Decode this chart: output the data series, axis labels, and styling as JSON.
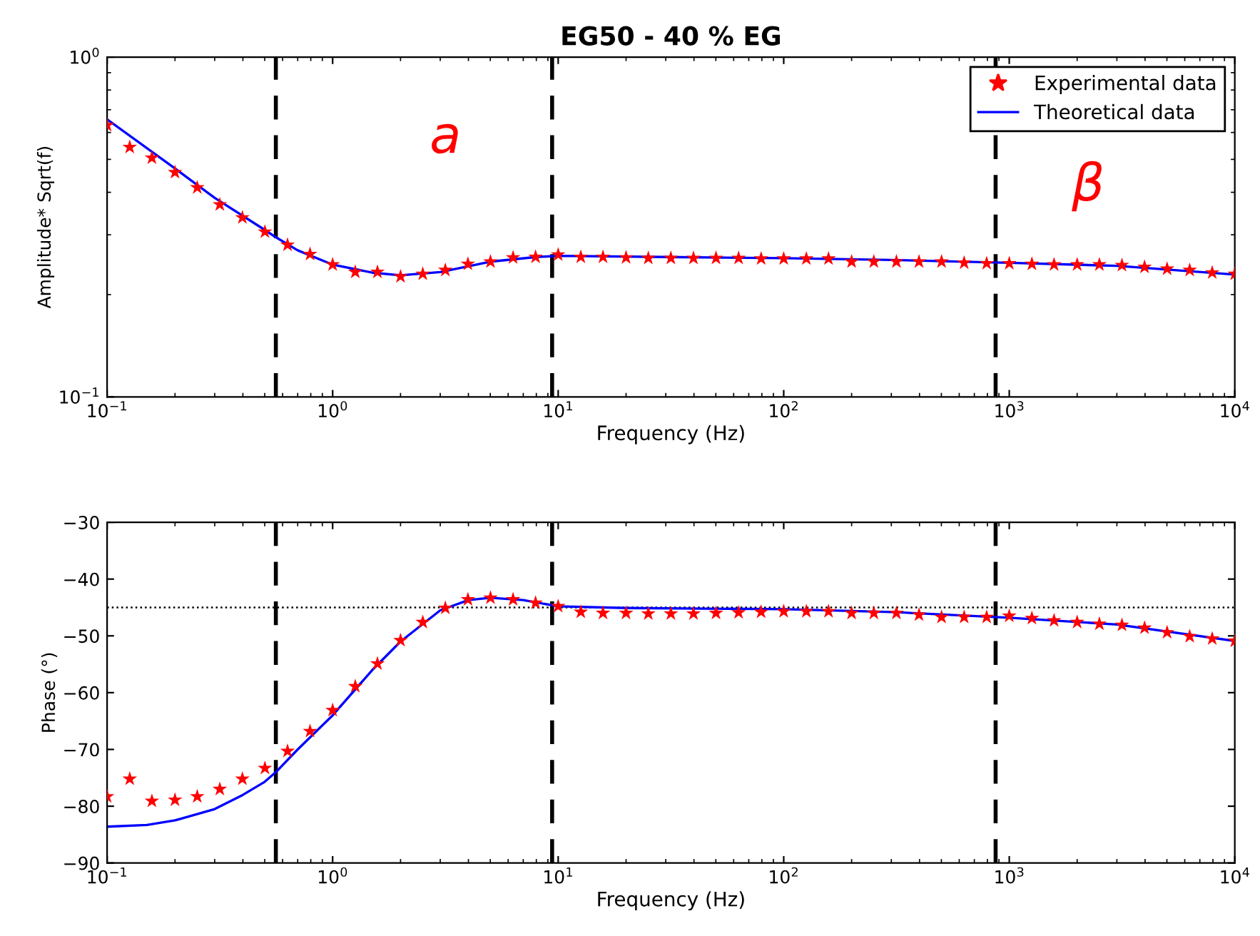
{
  "chart_data": [
    {
      "type": "scatter",
      "title": "EG50 - 40 % EG",
      "xlabel": "Frequency (Hz)",
      "ylabel": "Amplitude* Sqrt(f)",
      "log": "xy",
      "legend": "top right",
      "grid": false,
      "xlim": [
        0.1,
        10000
      ],
      "xticks": [
        {
          "value": 0.1,
          "label": "10$^{−1}$"
        },
        {
          "value": 1,
          "label": "10$^{0}$"
        },
        {
          "value": 10,
          "label": "10$^{1}$"
        },
        {
          "value": 100,
          "label": "10$^{2}$"
        },
        {
          "value": 1000,
          "label": "10$^{3}$"
        },
        {
          "value": 10000,
          "label": "10$^{4}$"
        }
      ],
      "ylim": [
        0.1,
        1
      ],
      "yticks": [
        {
          "value": 0.1,
          "label": "10$^{−1}$"
        },
        {
          "value": 1,
          "label": "10$^{0}$"
        }
      ],
      "x": [
        0.1,
        0.126,
        0.158,
        0.2,
        0.251,
        0.316,
        0.398,
        0.501,
        0.631,
        0.794,
        1,
        1.26,
        1.58,
        2,
        2.51,
        3.16,
        3.98,
        5.01,
        6.31,
        7.94,
        10,
        12.6,
        15.8,
        20,
        25.1,
        31.6,
        39.8,
        50.1,
        63.1,
        79.4,
        100,
        126,
        158,
        200,
        251,
        316,
        398,
        501,
        631,
        794,
        1000,
        1260,
        1580,
        2000,
        2510,
        3160,
        3980,
        5010,
        6310,
        7940,
        10000
      ],
      "series": [
        {
          "name": "Experimental data",
          "marker": "star",
          "color": "#ff0000",
          "values": [
            0.63,
            0.543,
            0.505,
            0.458,
            0.413,
            0.368,
            0.337,
            0.306,
            0.28,
            0.263,
            0.245,
            0.233,
            0.233,
            0.226,
            0.23,
            0.236,
            0.246,
            0.25,
            0.257,
            0.258,
            0.262,
            0.258,
            0.258,
            0.257,
            0.256,
            0.256,
            0.256,
            0.256,
            0.256,
            0.255,
            0.255,
            0.255,
            0.255,
            0.25,
            0.25,
            0.25,
            0.25,
            0.25,
            0.248,
            0.247,
            0.247,
            0.246,
            0.245,
            0.245,
            0.245,
            0.244,
            0.241,
            0.238,
            0.236,
            0.232,
            0.23
          ]
        },
        {
          "name": "Theoretical data",
          "type": "line",
          "marker": "none",
          "line_style": "solid",
          "color": "#0000ff",
          "x": [
            0.1,
            0.2,
            0.3,
            0.5,
            0.56,
            0.7,
            1,
            1.5,
            2,
            3,
            5,
            8,
            10,
            30,
            100,
            300,
            1000,
            3000,
            10000
          ],
          "values": [
            0.656,
            0.47,
            0.385,
            0.31,
            0.295,
            0.27,
            0.245,
            0.232,
            0.228,
            0.233,
            0.25,
            0.258,
            0.26,
            0.258,
            0.256,
            0.253,
            0.248,
            0.243,
            0.229
          ]
        }
      ],
      "ref_lines": [
        {
          "axis": "x",
          "value": 0.56,
          "color": "#000000",
          "line_style": "dashed"
        },
        {
          "axis": "x",
          "value": 9.4,
          "color": "#000000",
          "line_style": "dashed"
        },
        {
          "axis": "x",
          "value": 870,
          "color": "#000000",
          "line_style": "dashed"
        }
      ],
      "annotations": [
        "a",
        "β"
      ]
    },
    {
      "type": "scatter",
      "xlabel": "Frequency (Hz)",
      "ylabel": "Phase (°)",
      "log": "x",
      "legend": false,
      "grid": false,
      "xlim": [
        0.1,
        10000
      ],
      "xticks": [
        {
          "value": 0.1,
          "label": "10$^{−1}$"
        },
        {
          "value": 1,
          "label": "10$^{0}$"
        },
        {
          "value": 10,
          "label": "10$^{1}$"
        },
        {
          "value": 100,
          "label": "10$^{2}$"
        },
        {
          "value": 1000,
          "label": "10$^{3}$"
        },
        {
          "value": 10000,
          "label": "10$^{4}$"
        }
      ],
      "ylim": [
        -90,
        -30
      ],
      "yticks": [
        -90,
        -80,
        -70,
        -60,
        -50,
        -40,
        -30
      ],
      "x": [
        0.1,
        0.126,
        0.158,
        0.2,
        0.251,
        0.316,
        0.398,
        0.501,
        0.631,
        0.794,
        1,
        1.26,
        1.58,
        2,
        2.51,
        3.16,
        3.98,
        5.01,
        6.31,
        7.94,
        10,
        12.6,
        15.8,
        20,
        25.1,
        31.6,
        39.8,
        50.1,
        63.1,
        79.4,
        100,
        126,
        158,
        200,
        251,
        316,
        398,
        501,
        631,
        794,
        1000,
        1260,
        1580,
        2000,
        2510,
        3160,
        3980,
        5010,
        6310,
        7940,
        10000
      ],
      "series": [
        {
          "marker": "star",
          "color": "#ff0000",
          "values": [
            -78.3,
            -75.2,
            -79.1,
            -78.9,
            -78.3,
            -77.0,
            -75.2,
            -73.3,
            -70.3,
            -66.8,
            -63.1,
            -58.9,
            -54.9,
            -50.8,
            -47.6,
            -45.1,
            -43.6,
            -43.3,
            -43.6,
            -44.2,
            -44.8,
            -45.8,
            -46.0,
            -46.0,
            -46.1,
            -46.1,
            -46.1,
            -46.0,
            -45.9,
            -45.8,
            -45.7,
            -45.7,
            -45.7,
            -46.0,
            -46.0,
            -46.0,
            -46.3,
            -46.7,
            -46.7,
            -46.7,
            -46.5,
            -46.9,
            -47.3,
            -47.6,
            -47.9,
            -48.1,
            -48.6,
            -49.4,
            -50.1,
            -50.5,
            -50.9
          ]
        },
        {
          "type": "line",
          "marker": "none",
          "line_style": "solid",
          "color": "#0000ff",
          "x": [
            0.1,
            0.15,
            0.2,
            0.3,
            0.4,
            0.5,
            0.56,
            0.7,
            1,
            1.5,
            2,
            3,
            4,
            5,
            7,
            10,
            20,
            100,
            300,
            1000,
            3000,
            10000
          ],
          "values": [
            -83.6,
            -83.3,
            -82.5,
            -80.5,
            -78.0,
            -75.7,
            -74.0,
            -70.0,
            -64.0,
            -56.0,
            -51.0,
            -45.5,
            -43.7,
            -43.3,
            -43.7,
            -44.8,
            -45.1,
            -45.3,
            -45.8,
            -46.8,
            -48.0,
            -50.9
          ]
        }
      ],
      "ref_lines": [
        {
          "axis": "x",
          "value": 0.56,
          "color": "#000000",
          "line_style": "dashed"
        },
        {
          "axis": "x",
          "value": 9.4,
          "color": "#000000",
          "line_style": "dashed"
        },
        {
          "axis": "x",
          "value": 870,
          "color": "#000000",
          "line_style": "dashed"
        },
        {
          "axis": "y",
          "value": -45,
          "color": "#000000",
          "line_style": "dotted"
        }
      ]
    }
  ]
}
